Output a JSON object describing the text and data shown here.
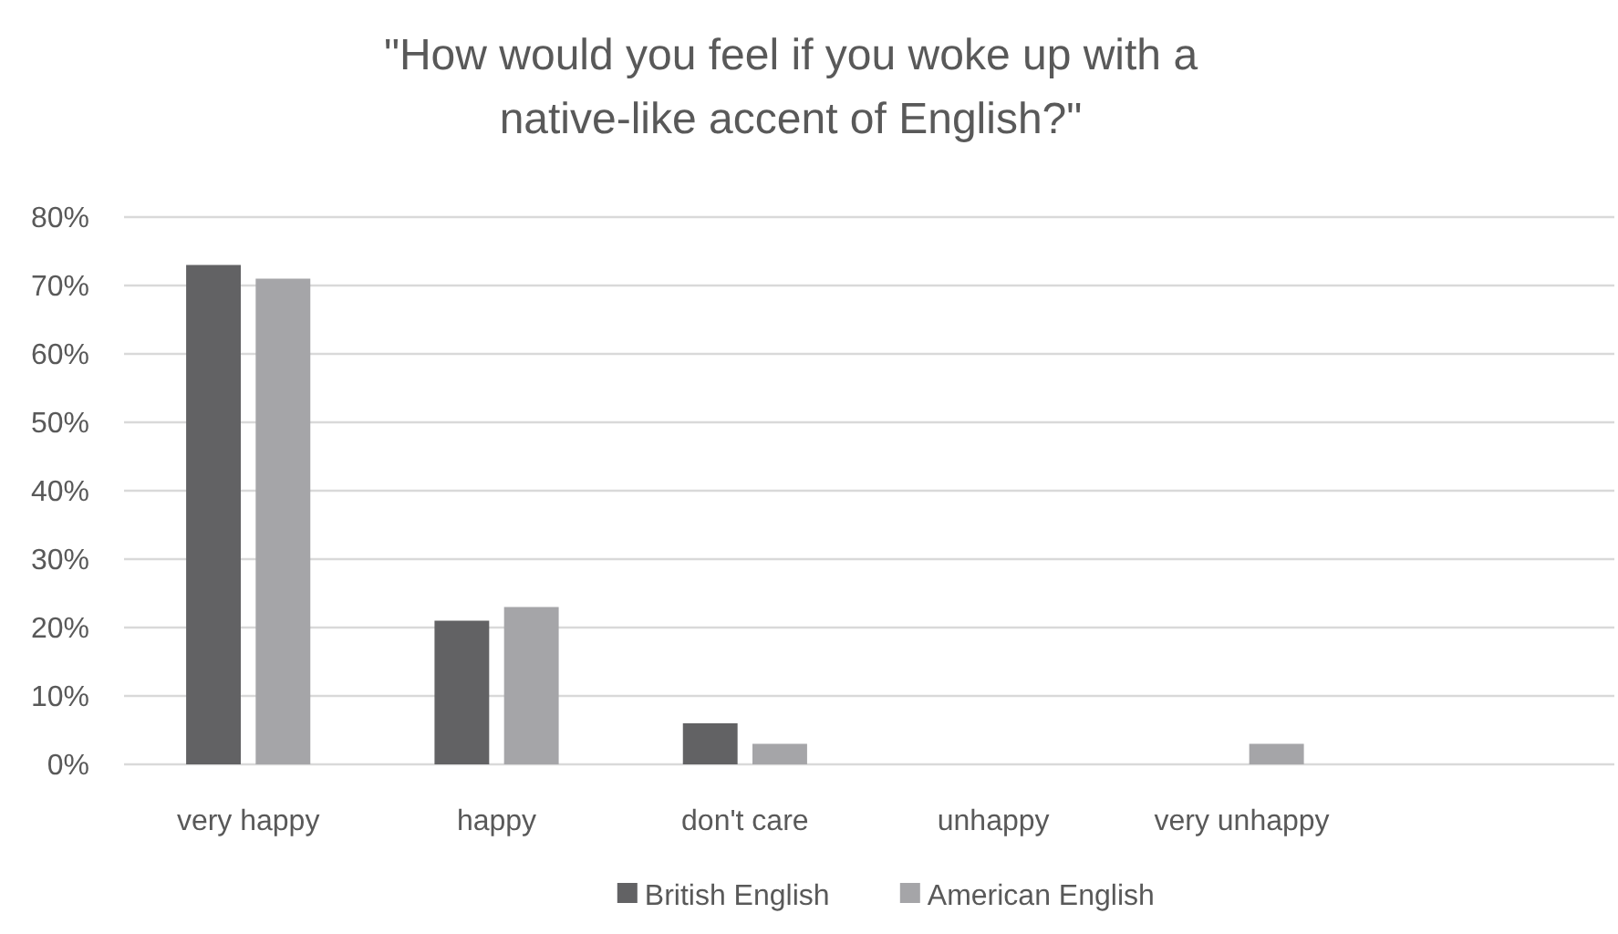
{
  "chart_data": {
    "type": "bar",
    "title": "\"How would you feel if you woke up with a native-like accent of English?\"",
    "categories": [
      "very happy",
      "happy",
      "don't care",
      "unhappy",
      "very unhappy",
      null
    ],
    "series": [
      {
        "name": "British English",
        "color": "#626264",
        "values": [
          73,
          21,
          6,
          0,
          0,
          null
        ]
      },
      {
        "name": "American English",
        "color": "#a5a5a8",
        "values": [
          71,
          23,
          3,
          0,
          3,
          null
        ]
      }
    ],
    "ylim": [
      0,
      80
    ],
    "yticks": [
      {
        "value": 0,
        "label": "0%"
      },
      {
        "value": 10,
        "label": "10%"
      },
      {
        "value": 20,
        "label": "20%"
      },
      {
        "value": 30,
        "label": "30%"
      },
      {
        "value": 40,
        "label": "40%"
      },
      {
        "value": 50,
        "label": "50%"
      },
      {
        "value": 60,
        "label": "60%"
      },
      {
        "value": 70,
        "label": "70%"
      },
      {
        "value": 80,
        "label": "80%"
      }
    ],
    "grid": "y",
    "legend": "bottom"
  }
}
